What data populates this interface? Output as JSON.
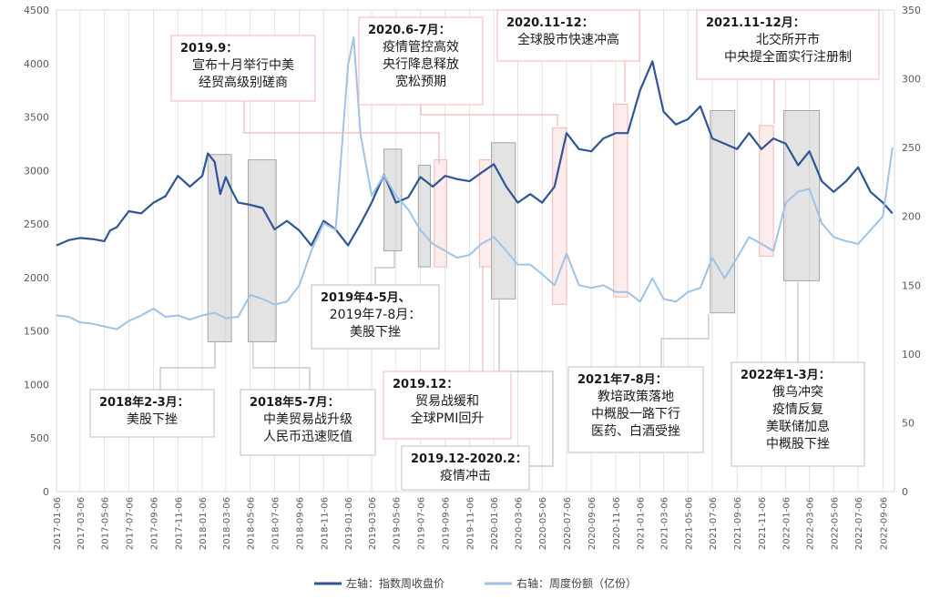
{
  "chart_data": {
    "type": "line",
    "y_left": {
      "min": 0,
      "max": 4500,
      "ticks": [
        "0",
        "500",
        "1000",
        "1500",
        "2000",
        "2500",
        "3000",
        "3500",
        "4000",
        "4500"
      ]
    },
    "y_right": {
      "min": 0,
      "max": 350,
      "ticks": [
        "0",
        "50",
        "100",
        "150",
        "200",
        "250",
        "300",
        "350"
      ]
    },
    "x_ticks": [
      "2017-01-06",
      "2017-03-06",
      "2017-05-06",
      "2017-07-06",
      "2017-09-06",
      "2017-11-06",
      "2018-01-06",
      "2018-03-06",
      "2018-05-06",
      "2018-07-06",
      "2018-09-06",
      "2018-11-06",
      "2019-01-06",
      "2019-03-06",
      "2019-05-06",
      "2019-07-06",
      "2019-09-06",
      "2019-11-06",
      "2020-01-06",
      "2020-03-06",
      "2020-05-06",
      "2020-07-06",
      "2020-09-06",
      "2020-11-06",
      "2021-01-06",
      "2021-03-06",
      "2021-05-06",
      "2021-07-06",
      "2021-09-06",
      "2021-11-06",
      "2022-01-06",
      "2022-03-06",
      "2022-05-06",
      "2022-07-06",
      "2022-09-06"
    ],
    "series": [
      {
        "name": "左轴：指数周收盘价",
        "axis": "left",
        "color": "#2F5597",
        "points": [
          [
            "2017-01-06",
            2300
          ],
          [
            "2017-02-06",
            2350
          ],
          [
            "2017-03-06",
            2370
          ],
          [
            "2017-04-06",
            2360
          ],
          [
            "2017-05-06",
            2340
          ],
          [
            "2017-05-20",
            2440
          ],
          [
            "2017-06-06",
            2470
          ],
          [
            "2017-07-06",
            2620
          ],
          [
            "2017-08-06",
            2600
          ],
          [
            "2017-09-06",
            2700
          ],
          [
            "2017-10-06",
            2760
          ],
          [
            "2017-11-06",
            2950
          ],
          [
            "2017-12-06",
            2850
          ],
          [
            "2018-01-06",
            2950
          ],
          [
            "2018-01-20",
            3160
          ],
          [
            "2018-02-06",
            3080
          ],
          [
            "2018-02-20",
            2780
          ],
          [
            "2018-03-06",
            2940
          ],
          [
            "2018-03-20",
            2820
          ],
          [
            "2018-04-06",
            2700
          ],
          [
            "2018-05-06",
            2680
          ],
          [
            "2018-06-06",
            2650
          ],
          [
            "2018-07-06",
            2450
          ],
          [
            "2018-08-06",
            2530
          ],
          [
            "2018-09-06",
            2440
          ],
          [
            "2018-10-06",
            2300
          ],
          [
            "2018-11-06",
            2530
          ],
          [
            "2018-12-06",
            2450
          ],
          [
            "2019-01-06",
            2300
          ],
          [
            "2019-02-06",
            2500
          ],
          [
            "2019-03-06",
            2700
          ],
          [
            "2019-04-06",
            2960
          ],
          [
            "2019-05-06",
            2700
          ],
          [
            "2019-06-06",
            2750
          ],
          [
            "2019-07-06",
            2940
          ],
          [
            "2019-08-06",
            2850
          ],
          [
            "2019-09-06",
            2950
          ],
          [
            "2019-10-06",
            2920
          ],
          [
            "2019-11-06",
            2900
          ],
          [
            "2019-12-06",
            2980
          ],
          [
            "2020-01-06",
            3060
          ],
          [
            "2020-02-06",
            2850
          ],
          [
            "2020-03-06",
            2700
          ],
          [
            "2020-04-06",
            2780
          ],
          [
            "2020-05-06",
            2700
          ],
          [
            "2020-06-06",
            2850
          ],
          [
            "2020-07-06",
            3350
          ],
          [
            "2020-08-06",
            3200
          ],
          [
            "2020-09-06",
            3180
          ],
          [
            "2020-10-06",
            3300
          ],
          [
            "2020-11-06",
            3350
          ],
          [
            "2020-12-06",
            3350
          ],
          [
            "2021-01-06",
            3750
          ],
          [
            "2021-02-06",
            4020
          ],
          [
            "2021-03-06",
            3550
          ],
          [
            "2021-04-06",
            3430
          ],
          [
            "2021-05-06",
            3480
          ],
          [
            "2021-06-06",
            3600
          ],
          [
            "2021-07-06",
            3300
          ],
          [
            "2021-08-06",
            3250
          ],
          [
            "2021-09-06",
            3200
          ],
          [
            "2021-10-06",
            3350
          ],
          [
            "2021-11-06",
            3200
          ],
          [
            "2021-12-06",
            3300
          ],
          [
            "2022-01-06",
            3250
          ],
          [
            "2022-02-06",
            3050
          ],
          [
            "2022-03-06",
            3180
          ],
          [
            "2022-04-06",
            2900
          ],
          [
            "2022-05-06",
            2800
          ],
          [
            "2022-06-06",
            2900
          ],
          [
            "2022-07-06",
            3030
          ],
          [
            "2022-08-06",
            2800
          ],
          [
            "2022-09-06",
            2700
          ],
          [
            "2022-09-30",
            2600
          ]
        ]
      },
      {
        "name": "右轴：周度份额（亿份）",
        "axis": "right",
        "color": "#9DC3E6",
        "points": [
          [
            "2017-01-06",
            128
          ],
          [
            "2017-02-06",
            127
          ],
          [
            "2017-03-06",
            123
          ],
          [
            "2017-04-06",
            122
          ],
          [
            "2017-05-06",
            120
          ],
          [
            "2017-06-06",
            118
          ],
          [
            "2017-07-06",
            124
          ],
          [
            "2017-08-06",
            128
          ],
          [
            "2017-09-06",
            133
          ],
          [
            "2017-10-06",
            127
          ],
          [
            "2017-11-06",
            128
          ],
          [
            "2017-12-06",
            125
          ],
          [
            "2018-01-06",
            128
          ],
          [
            "2018-02-06",
            130
          ],
          [
            "2018-03-06",
            126
          ],
          [
            "2018-04-06",
            127
          ],
          [
            "2018-05-06",
            143
          ],
          [
            "2018-06-06",
            140
          ],
          [
            "2018-07-06",
            136
          ],
          [
            "2018-08-06",
            138
          ],
          [
            "2018-09-06",
            150
          ],
          [
            "2018-10-06",
            175
          ],
          [
            "2018-11-06",
            195
          ],
          [
            "2018-12-06",
            190
          ],
          [
            "2019-01-06",
            310
          ],
          [
            "2019-01-20",
            330
          ],
          [
            "2019-02-06",
            260
          ],
          [
            "2019-03-06",
            215
          ],
          [
            "2019-04-06",
            230
          ],
          [
            "2019-05-06",
            215
          ],
          [
            "2019-06-06",
            205
          ],
          [
            "2019-07-06",
            190
          ],
          [
            "2019-08-06",
            180
          ],
          [
            "2019-09-06",
            175
          ],
          [
            "2019-10-06",
            170
          ],
          [
            "2019-11-06",
            172
          ],
          [
            "2019-12-06",
            180
          ],
          [
            "2020-01-06",
            185
          ],
          [
            "2020-02-06",
            175
          ],
          [
            "2020-03-06",
            165
          ],
          [
            "2020-04-06",
            165
          ],
          [
            "2020-05-06",
            158
          ],
          [
            "2020-06-06",
            150
          ],
          [
            "2020-07-06",
            173
          ],
          [
            "2020-08-06",
            150
          ],
          [
            "2020-09-06",
            148
          ],
          [
            "2020-10-06",
            150
          ],
          [
            "2020-11-06",
            145
          ],
          [
            "2020-12-06",
            145
          ],
          [
            "2021-01-06",
            138
          ],
          [
            "2021-02-06",
            155
          ],
          [
            "2021-03-06",
            140
          ],
          [
            "2021-04-06",
            138
          ],
          [
            "2021-05-06",
            145
          ],
          [
            "2021-06-06",
            148
          ],
          [
            "2021-07-06",
            170
          ],
          [
            "2021-08-06",
            155
          ],
          [
            "2021-09-06",
            170
          ],
          [
            "2021-10-06",
            185
          ],
          [
            "2021-11-06",
            180
          ],
          [
            "2021-12-06",
            175
          ],
          [
            "2022-01-06",
            210
          ],
          [
            "2022-02-06",
            218
          ],
          [
            "2022-03-06",
            220
          ],
          [
            "2022-04-06",
            195
          ],
          [
            "2022-05-06",
            185
          ],
          [
            "2022-06-06",
            182
          ],
          [
            "2022-07-06",
            180
          ],
          [
            "2022-08-06",
            190
          ],
          [
            "2022-09-06",
            200
          ],
          [
            "2022-09-30",
            250
          ]
        ]
      }
    ],
    "shaded_periods": [
      {
        "start": "2018-01-20",
        "end": "2018-03-20",
        "ymin": 1400,
        "ymax": 3150,
        "style": "gray"
      },
      {
        "start": "2018-05-01",
        "end": "2018-07-10",
        "ymin": 1400,
        "ymax": 3100,
        "style": "gray"
      },
      {
        "start": "2019-04-06",
        "end": "2019-05-20",
        "ymin": 2250,
        "ymax": 3200,
        "style": "gray"
      },
      {
        "start": "2019-07-01",
        "end": "2019-07-31",
        "ymin": 2100,
        "ymax": 3050,
        "style": "gray"
      },
      {
        "start": "2019-08-10",
        "end": "2019-09-10",
        "ymin": 2100,
        "ymax": 3100,
        "style": "pink"
      },
      {
        "start": "2019-12-01",
        "end": "2019-12-31",
        "ymin": 2100,
        "ymax": 3100,
        "style": "pink"
      },
      {
        "start": "2019-12-31",
        "end": "2020-02-29",
        "ymin": 1800,
        "ymax": 3260,
        "style": "gray"
      },
      {
        "start": "2020-06-01",
        "end": "2020-07-06",
        "ymin": 1750,
        "ymax": 3400,
        "style": "pink"
      },
      {
        "start": "2020-11-01",
        "end": "2020-12-06",
        "ymin": 1820,
        "ymax": 3620,
        "style": "pink"
      },
      {
        "start": "2021-07-01",
        "end": "2021-08-31",
        "ymin": 1670,
        "ymax": 3560,
        "style": "gray"
      },
      {
        "start": "2021-11-01",
        "end": "2021-12-06",
        "ymin": 2200,
        "ymax": 3420,
        "style": "pink"
      },
      {
        "start": "2022-01-01",
        "end": "2022-03-31",
        "ymin": 1970,
        "ymax": 3560,
        "style": "gray"
      }
    ],
    "annotations": [
      {
        "title": "2019.9：",
        "lines": [
          "宣布十月举行中美",
          "经贸高级别磋商"
        ]
      },
      {
        "title": "2020.6-7月：",
        "lines": [
          "疫情管控高效",
          "央行降息释放",
          "宽松预期"
        ]
      },
      {
        "title": "2020.11-12：",
        "lines": [
          "全球股市快速冲高"
        ]
      },
      {
        "title": "2021.11-12月：",
        "lines": [
          "北交所开市",
          "中央提全面实行注册制"
        ]
      },
      {
        "title": "2019年4-5月、",
        "lines": [
          "2019年7-8月：",
          "美股下挫"
        ]
      },
      {
        "title": "2018年2-3月：",
        "lines": [
          "美股下挫"
        ]
      },
      {
        "title": "2018年5-7月：",
        "lines": [
          "中美贸易战升级",
          "人民币迅速贬值"
        ]
      },
      {
        "title": "2019.12：",
        "lines": [
          "贸易战缓和",
          "全球PMI回升"
        ]
      },
      {
        "title": "2019.12-2020.2：",
        "lines": [
          "疫情冲击"
        ]
      },
      {
        "title": "2021年7-8月：",
        "lines": [
          "教培政策落地",
          "中概股一路下行",
          "医药、白酒受挫"
        ]
      },
      {
        "title": "2022年1-3月：",
        "lines": [
          "俄乌冲突",
          "疫情反复",
          "美联储加息",
          "中概股下挫"
        ]
      }
    ],
    "legend": {
      "placement": "bottom-center",
      "items": [
        "左轴：指数周收盘价",
        "右轴：周度份额（亿份）"
      ]
    },
    "grid": "vertical"
  }
}
